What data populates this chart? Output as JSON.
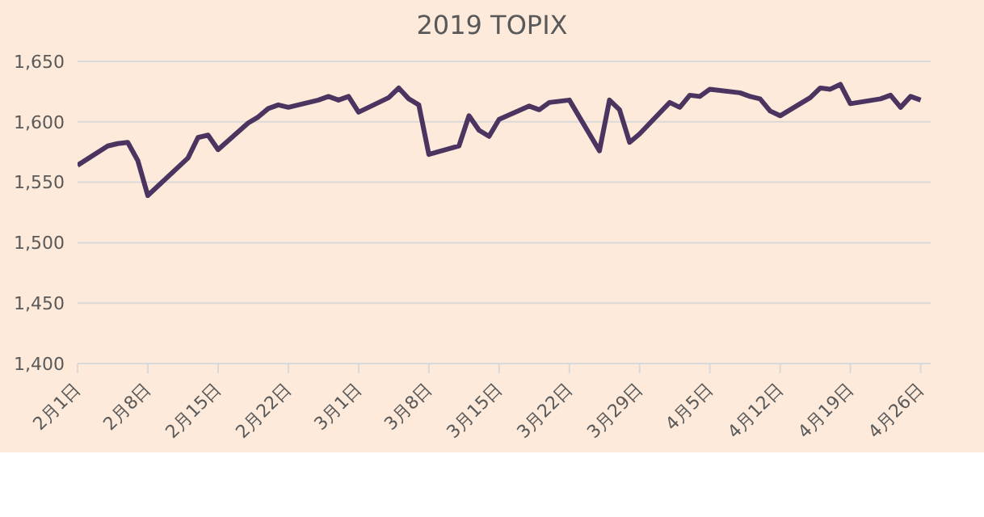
{
  "chart_data": {
    "type": "line",
    "title": "2019 TOPIX",
    "x": [
      "2019-02-01",
      "2019-02-04",
      "2019-02-05",
      "2019-02-06",
      "2019-02-07",
      "2019-02-08",
      "2019-02-12",
      "2019-02-13",
      "2019-02-14",
      "2019-02-15",
      "2019-02-18",
      "2019-02-19",
      "2019-02-20",
      "2019-02-21",
      "2019-02-22",
      "2019-02-25",
      "2019-02-26",
      "2019-02-27",
      "2019-02-28",
      "2019-03-01",
      "2019-03-04",
      "2019-03-05",
      "2019-03-06",
      "2019-03-07",
      "2019-03-08",
      "2019-03-11",
      "2019-03-12",
      "2019-03-13",
      "2019-03-14",
      "2019-03-15",
      "2019-03-18",
      "2019-03-19",
      "2019-03-20",
      "2019-03-22",
      "2019-03-25",
      "2019-03-26",
      "2019-03-27",
      "2019-03-28",
      "2019-03-29",
      "2019-04-01",
      "2019-04-02",
      "2019-04-03",
      "2019-04-04",
      "2019-04-05",
      "2019-04-08",
      "2019-04-09",
      "2019-04-10",
      "2019-04-11",
      "2019-04-12",
      "2019-04-15",
      "2019-04-16",
      "2019-04-17",
      "2019-04-18",
      "2019-04-19",
      "2019-04-22",
      "2019-04-23",
      "2019-04-24",
      "2019-04-25",
      "2019-04-26"
    ],
    "series": [
      {
        "color": "#4b3560",
        "values": [
          1564,
          1580,
          1582,
          1583,
          1568,
          1539,
          1570,
          1587,
          1589,
          1577,
          1599,
          1604,
          1611,
          1614,
          1612,
          1618,
          1621,
          1618,
          1621,
          1608,
          1620,
          1628,
          1619,
          1614,
          1573,
          1580,
          1605,
          1593,
          1588,
          1602,
          1613,
          1610,
          1616,
          1618,
          1576,
          1618,
          1610,
          1583,
          1590,
          1616,
          1612,
          1622,
          1621,
          1627,
          1624,
          1621,
          1619,
          1609,
          1605,
          1620,
          1628,
          1627,
          1631,
          1615,
          1619,
          1622,
          1612,
          1621,
          1618
        ]
      }
    ],
    "xlim": [
      "2019-02-01",
      "2019-04-27"
    ],
    "xticks": [
      {
        "value": "2019-02-01",
        "label": "2月1日"
      },
      {
        "value": "2019-02-08",
        "label": "2月8日"
      },
      {
        "value": "2019-02-15",
        "label": "2月15日"
      },
      {
        "value": "2019-02-22",
        "label": "2月22日"
      },
      {
        "value": "2019-03-01",
        "label": "3月1日"
      },
      {
        "value": "2019-03-08",
        "label": "3月8日"
      },
      {
        "value": "2019-03-15",
        "label": "3月15日"
      },
      {
        "value": "2019-03-22",
        "label": "3月22日"
      },
      {
        "value": "2019-03-29",
        "label": "3月29日"
      },
      {
        "value": "2019-04-05",
        "label": "4月5日"
      },
      {
        "value": "2019-04-12",
        "label": "4月12日"
      },
      {
        "value": "2019-04-19",
        "label": "4月19日"
      },
      {
        "value": "2019-04-26",
        "label": "4月26日"
      }
    ],
    "ylim": [
      1400,
      1650
    ],
    "yticks": [
      {
        "value": 1400,
        "label": "1,400"
      },
      {
        "value": 1450,
        "label": "1,450"
      },
      {
        "value": 1500,
        "label": "1,500"
      },
      {
        "value": 1550,
        "label": "1,550"
      },
      {
        "value": 1600,
        "label": "1,600"
      },
      {
        "value": 1650,
        "label": "1,650"
      }
    ],
    "grid": "y",
    "marker": "none",
    "line_style": "solid"
  }
}
